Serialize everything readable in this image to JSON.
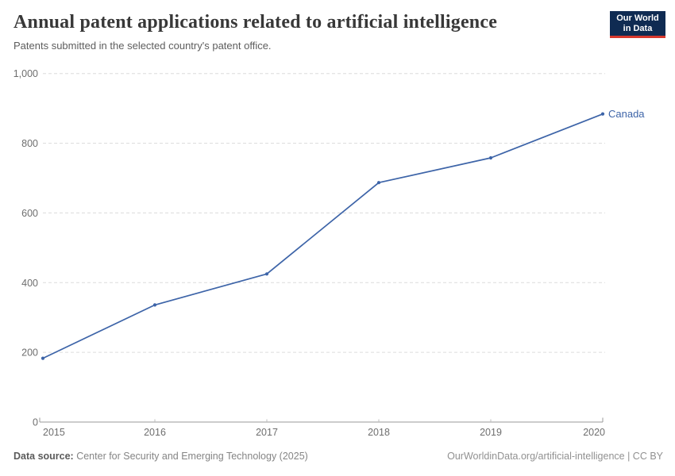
{
  "header": {
    "title": "Annual patent applications related to artificial intelligence",
    "subtitle": "Patents submitted in the selected country's patent office."
  },
  "logo": {
    "line1": "Our World",
    "line2": "in Data",
    "bg_color": "#0f2b52",
    "bar_color": "#d7382d"
  },
  "chart_data": {
    "type": "line",
    "title": "Annual patent applications related to artificial intelligence",
    "subtitle": "Patents submitted in the selected country's patent office.",
    "x": [
      2015,
      2016,
      2017,
      2018,
      2019,
      2020
    ],
    "series": [
      {
        "name": "Canada",
        "color": "#3d64a8",
        "values": [
          183,
          336,
          425,
          687,
          758,
          884
        ]
      }
    ],
    "xlabel": "",
    "ylabel": "",
    "ylim": [
      0,
      1000
    ],
    "yticks": [
      0,
      200,
      400,
      600,
      800,
      1000
    ],
    "xticks": [
      2015,
      2016,
      2017,
      2018,
      2019,
      2020
    ],
    "grid": "horizontal-dashed",
    "legend": "line-end-label",
    "axis_color": "#9a9a9a",
    "grid_color": "#dcdcdc",
    "tick_label_color": "#6e6e6e"
  },
  "footer": {
    "datasource_label": "Data source:",
    "datasource_text": " Center for Security and Emerging Technology (2025)",
    "credit": "OurWorldinData.org/artificial-intelligence | CC BY"
  }
}
